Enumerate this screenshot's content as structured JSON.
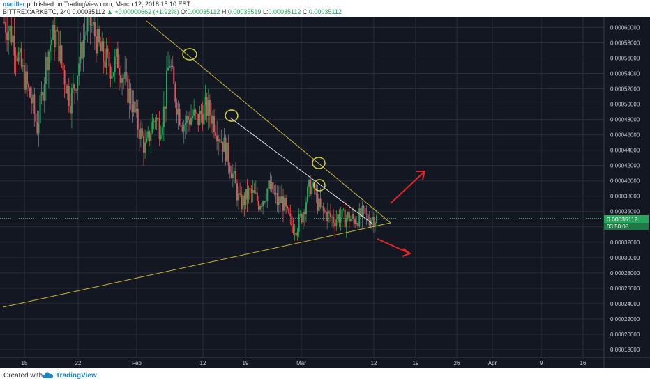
{
  "header": {
    "author": "matiller",
    "published_text": "published on TradingView.com, March 12, 2018 15:10 EST",
    "symbol": "BITTREX:ARKBTC, 240",
    "last": "0.00035112",
    "change": "▲ +0.00000662 (+1.92%)",
    "ohlc": [
      {
        "label": "O:",
        "value": "0.00035112"
      },
      {
        "label": "H:",
        "value": "0.00035519"
      },
      {
        "label": "L:",
        "value": "0.00035112"
      },
      {
        "label": "C:",
        "value": "0.00035112"
      }
    ]
  },
  "footer": {
    "created_with": "Created with",
    "brand": "TradingView"
  },
  "colors": {
    "background": "#131722",
    "grid": "#2a2e39",
    "up": "#26a65b",
    "down": "#e0525a",
    "trendline": "#c8b53a",
    "white_line": "#e6e6e6",
    "arrow": "#e52626",
    "price_tag": "#26a65b"
  },
  "chart_data": {
    "type": "candlestick",
    "grid": true,
    "ylim": [
      0.00017,
      0.000614
    ],
    "y_ticks": [
      "0.00060000",
      "0.00058000",
      "0.00056000",
      "0.00054000",
      "0.00052000",
      "0.00050000",
      "0.00048000",
      "0.00046000",
      "0.00044000",
      "0.00042000",
      "0.00040000",
      "0.00038000",
      "0.00036000",
      "0.00034000",
      "0.00032000",
      "0.00030000",
      "0.00028000",
      "0.00026000",
      "0.00024000",
      "0.00022000",
      "0.00020000",
      "0.00018000"
    ],
    "x_ticks": [
      "15",
      "22",
      "Feb",
      "12",
      "19",
      "Mar",
      "12",
      "19",
      "26",
      "Apr",
      "9",
      "16"
    ],
    "last_price_label": "0.00035112",
    "countdown_label": "03:50:08",
    "candles_sketch": [
      0.000607,
      0.000598,
      0.000585,
      0.000562,
      0.00054,
      0.00052,
      0.0005,
      0.00047,
      0.00051,
      0.00056,
      0.000585,
      0.00059,
      0.00056,
      0.00053,
      0.000505,
      0.000525,
      0.00056,
      0.00059,
      0.00061,
      0.000595,
      0.000575,
      0.00056,
      0.000555,
      0.000545,
      0.00056,
      0.00054,
      0.00052,
      0.000505,
      0.00048,
      0.00046,
      0.00044,
      0.000465,
      0.000485,
      0.00047,
      0.000495,
      0.00056,
      0.00052,
      0.00049,
      0.000475,
      0.00048,
      0.000485,
      0.000478,
      0.00049,
      0.000494,
      0.000485,
      0.00047,
      0.000455,
      0.00044,
      0.00042,
      0.000395,
      0.00037,
      0.000375,
      0.000385,
      0.00038,
      0.000372,
      0.000378,
      0.000392,
      0.000385,
      0.000372,
      0.000375,
      0.000355,
      0.000342,
      0.00034,
      0.000352,
      0.000375,
      0.000395,
      0.00038,
      0.000362,
      0.000358,
      0.000353,
      0.00035,
      0.000354,
      0.000351,
      0.000353,
      0.000349,
      0.000352,
      0.000355,
      0.000351,
      0.000353,
      0.000351
    ]
  }
}
